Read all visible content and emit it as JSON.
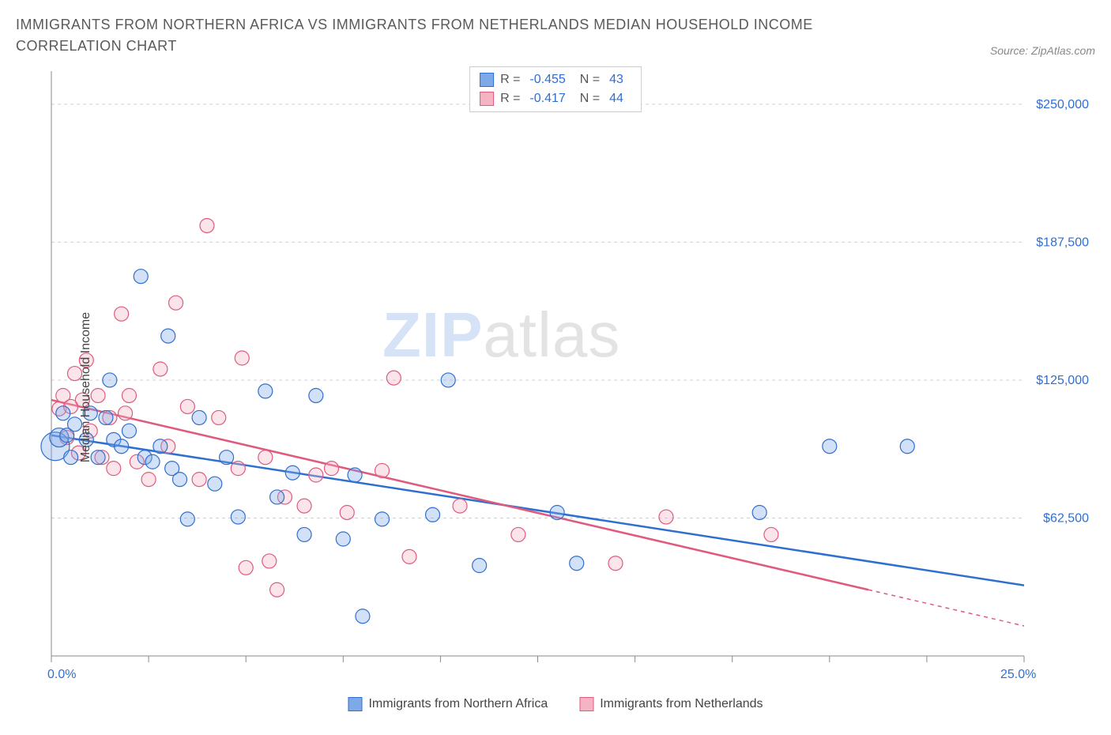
{
  "header": {
    "title": "IMMIGRANTS FROM NORTHERN AFRICA VS IMMIGRANTS FROM NETHERLANDS MEDIAN HOUSEHOLD INCOME CORRELATION CHART",
    "source": "Source: ZipAtlas.com"
  },
  "watermark": {
    "zip": "ZIP",
    "atlas": "atlas"
  },
  "chart": {
    "type": "scatter",
    "ylabel": "Median Household Income",
    "xlim": [
      0,
      25
    ],
    "ylim": [
      0,
      265000
    ],
    "x_tick_positions": [
      0,
      2.5,
      5,
      7.5,
      10,
      12.5,
      15,
      17.5,
      20,
      22.5,
      25
    ],
    "x_tick_labels_shown": {
      "0": "0.0%",
      "25": "25.0%"
    },
    "y_ticks": [
      62500,
      125000,
      187500,
      250000
    ],
    "y_tick_labels": [
      "$62,500",
      "$125,000",
      "$187,500",
      "$250,000"
    ],
    "grid_color": "#d0d0d0",
    "background_color": "#ffffff",
    "axis_color": "#888888",
    "marker_radius": 9,
    "marker_opacity": 0.35,
    "series": [
      {
        "name": "Immigrants from Northern Africa",
        "color_fill": "#7fa8e8",
        "color_stroke": "#2f6fd0",
        "r_label": "R =",
        "r": "-0.455",
        "n_label": "N =",
        "n": "43",
        "regression": {
          "x1": 0,
          "y1": 100000,
          "x2": 25,
          "y2": 32000,
          "dash_from_x": 25
        },
        "points": [
          [
            0.1,
            95000,
            18
          ],
          [
            0.2,
            99000,
            12
          ],
          [
            0.3,
            110000,
            9
          ],
          [
            0.4,
            100000,
            9
          ],
          [
            0.5,
            90000,
            9
          ],
          [
            0.6,
            105000,
            9
          ],
          [
            0.9,
            98000,
            9
          ],
          [
            1.0,
            110000,
            9
          ],
          [
            1.2,
            90000,
            9
          ],
          [
            1.4,
            108000,
            9
          ],
          [
            1.6,
            98000,
            9
          ],
          [
            1.5,
            125000,
            9
          ],
          [
            1.8,
            95000,
            9
          ],
          [
            2.0,
            102000,
            9
          ],
          [
            2.3,
            172000,
            9
          ],
          [
            2.4,
            90000,
            9
          ],
          [
            2.6,
            88000,
            9
          ],
          [
            2.8,
            95000,
            9
          ],
          [
            3.0,
            145000,
            9
          ],
          [
            3.1,
            85000,
            9
          ],
          [
            3.3,
            80000,
            9
          ],
          [
            3.5,
            62000,
            9
          ],
          [
            3.8,
            108000,
            9
          ],
          [
            4.2,
            78000,
            9
          ],
          [
            4.5,
            90000,
            9
          ],
          [
            4.8,
            63000,
            9
          ],
          [
            5.5,
            120000,
            9
          ],
          [
            5.8,
            72000,
            9
          ],
          [
            6.2,
            83000,
            9
          ],
          [
            6.5,
            55000,
            9
          ],
          [
            6.8,
            118000,
            9
          ],
          [
            7.5,
            53000,
            9
          ],
          [
            7.8,
            82000,
            9
          ],
          [
            8.0,
            18000,
            9
          ],
          [
            8.5,
            62000,
            9
          ],
          [
            9.8,
            64000,
            9
          ],
          [
            10.2,
            125000,
            9
          ],
          [
            11.0,
            41000,
            9
          ],
          [
            13.0,
            65000,
            9
          ],
          [
            13.5,
            42000,
            9
          ],
          [
            18.2,
            65000,
            9
          ],
          [
            20.0,
            95000,
            9
          ],
          [
            22.0,
            95000,
            9
          ]
        ]
      },
      {
        "name": "Immigrants from Netherlands",
        "color_fill": "#f4b4c4",
        "color_stroke": "#e05a7d",
        "r_label": "R =",
        "r": "-0.417",
        "n_label": "N =",
        "n": "44",
        "regression": {
          "x1": 0,
          "y1": 116000,
          "x2": 21,
          "y2": 30000,
          "dash_from_x": 21
        },
        "points": [
          [
            0.2,
            112000,
            9
          ],
          [
            0.3,
            118000,
            9
          ],
          [
            0.4,
            99000,
            9
          ],
          [
            0.5,
            113000,
            9
          ],
          [
            0.6,
            128000,
            9
          ],
          [
            0.7,
            92000,
            9
          ],
          [
            0.8,
            116000,
            9
          ],
          [
            0.9,
            134000,
            9
          ],
          [
            1.0,
            102000,
            9
          ],
          [
            1.2,
            118000,
            9
          ],
          [
            1.3,
            90000,
            9
          ],
          [
            1.5,
            108000,
            9
          ],
          [
            1.6,
            85000,
            9
          ],
          [
            1.8,
            155000,
            9
          ],
          [
            1.9,
            110000,
            9
          ],
          [
            2.0,
            118000,
            9
          ],
          [
            2.2,
            88000,
            9
          ],
          [
            2.5,
            80000,
            9
          ],
          [
            2.8,
            130000,
            9
          ],
          [
            3.0,
            95000,
            9
          ],
          [
            3.2,
            160000,
            9
          ],
          [
            3.5,
            113000,
            9
          ],
          [
            3.8,
            80000,
            9
          ],
          [
            4.0,
            195000,
            9
          ],
          [
            4.3,
            108000,
            9
          ],
          [
            4.8,
            85000,
            9
          ],
          [
            4.9,
            135000,
            9
          ],
          [
            5.0,
            40000,
            9
          ],
          [
            5.5,
            90000,
            9
          ],
          [
            5.6,
            43000,
            9
          ],
          [
            5.8,
            30000,
            9
          ],
          [
            6.0,
            72000,
            9
          ],
          [
            6.5,
            68000,
            9
          ],
          [
            6.8,
            82000,
            9
          ],
          [
            7.2,
            85000,
            9
          ],
          [
            7.6,
            65000,
            9
          ],
          [
            8.5,
            84000,
            9
          ],
          [
            8.8,
            126000,
            9
          ],
          [
            9.2,
            45000,
            9
          ],
          [
            10.5,
            68000,
            9
          ],
          [
            12.0,
            55000,
            9
          ],
          [
            14.5,
            42000,
            9
          ],
          [
            15.8,
            63000,
            9
          ],
          [
            18.5,
            55000,
            9
          ]
        ]
      }
    ]
  },
  "bottom_legend": {
    "items": [
      {
        "swatch_fill": "#7fa8e8",
        "swatch_stroke": "#2f6fd0",
        "label": "Immigrants from Northern Africa"
      },
      {
        "swatch_fill": "#f4b4c4",
        "swatch_stroke": "#e05a7d",
        "label": "Immigrants from Netherlands"
      }
    ]
  }
}
